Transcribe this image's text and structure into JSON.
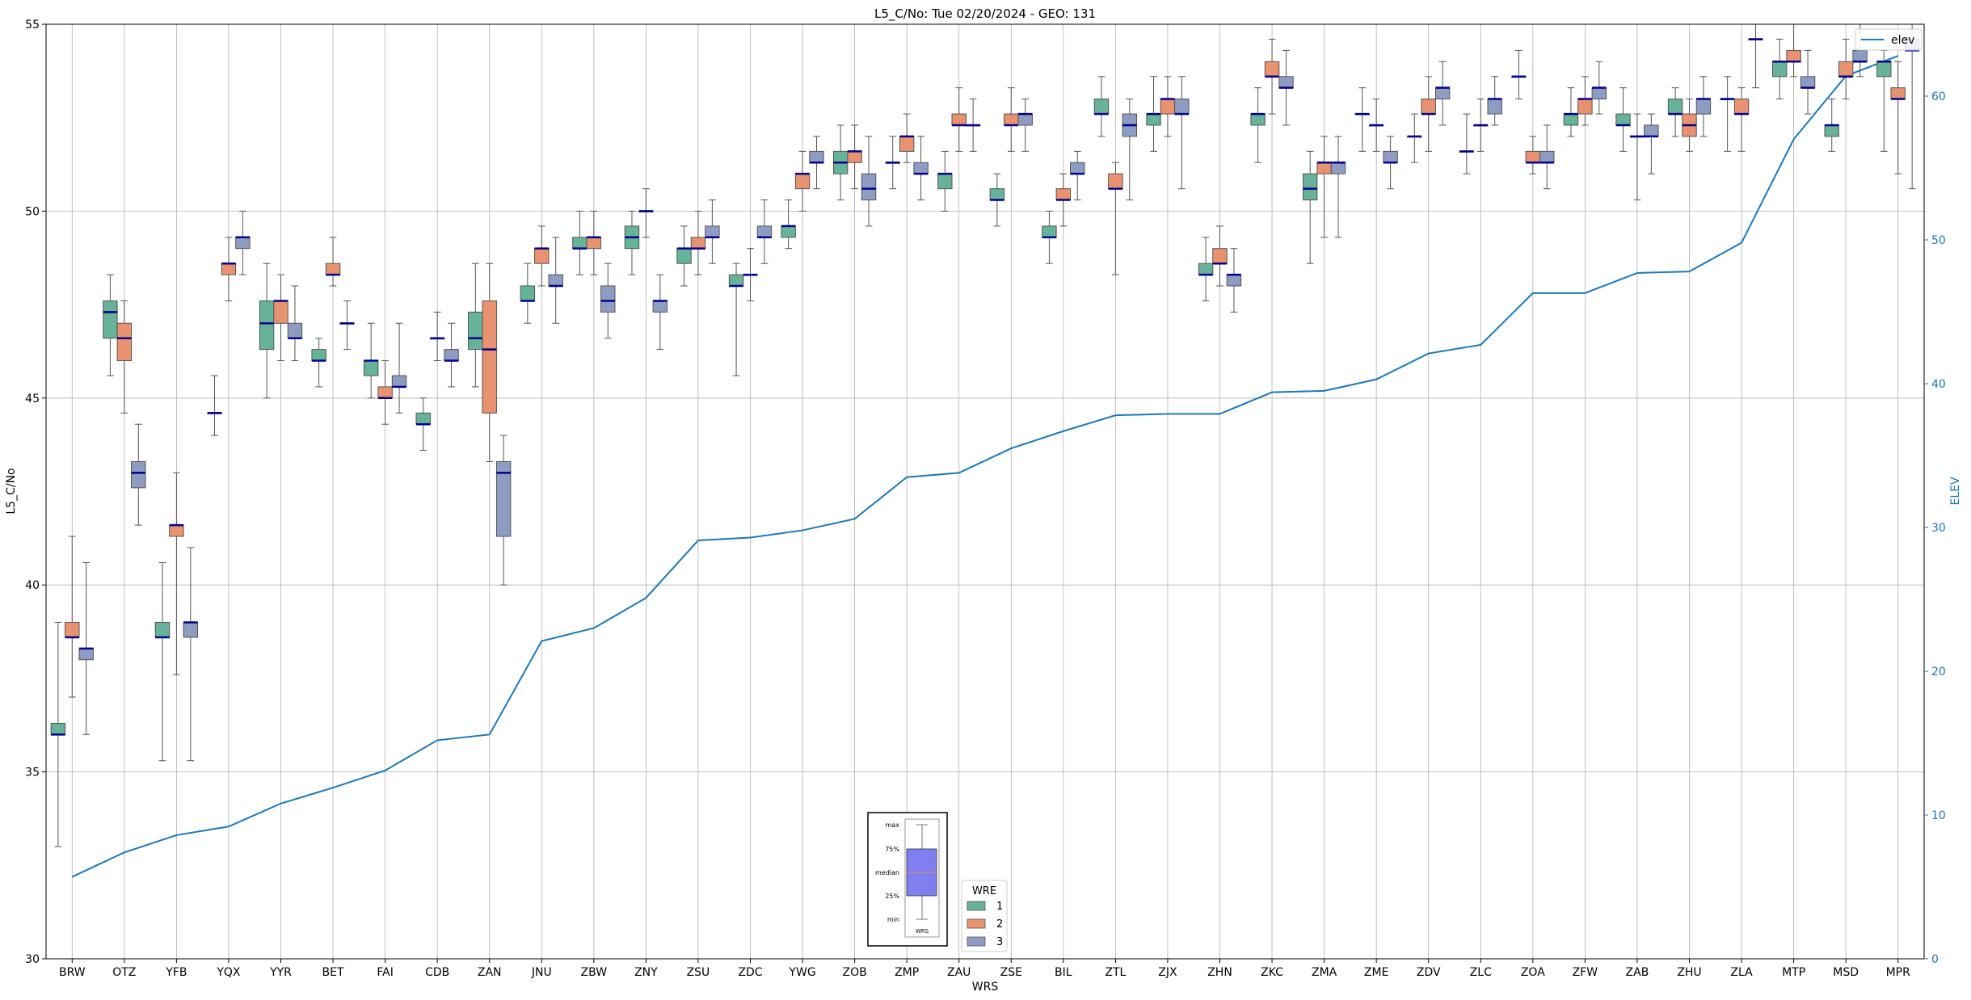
{
  "chart_data": {
    "type": "box",
    "title": "L5_C/No: Tue 02/20/2024 - GEO: 131",
    "xlabel": "WRS",
    "ylabel": "L5_C/No",
    "y2label": "ELEV",
    "ylim": [
      30,
      55
    ],
    "y2lim": [
      0,
      65
    ],
    "yticks": [
      30,
      35,
      40,
      45,
      50,
      55
    ],
    "y2ticks": [
      0,
      10,
      20,
      30,
      40,
      50,
      60
    ],
    "grid": true,
    "categories": [
      "BRW",
      "OTZ",
      "YFB",
      "YQX",
      "YYR",
      "BET",
      "FAI",
      "CDB",
      "ZAN",
      "JNU",
      "ZBW",
      "ZNY",
      "ZSU",
      "ZDC",
      "YWG",
      "ZOB",
      "ZMP",
      "ZAU",
      "ZSE",
      "BIL",
      "ZTL",
      "ZJX",
      "ZHN",
      "ZKC",
      "ZMA",
      "ZME",
      "ZDV",
      "ZLC",
      "ZOA",
      "ZFW",
      "ZAB",
      "ZHU",
      "ZLA",
      "MTP",
      "MSD",
      "MPR"
    ],
    "elev_series": {
      "name": "elev",
      "values": [
        5.7,
        7.4,
        8.6,
        9.2,
        10.8,
        11.9,
        13.1,
        15.2,
        15.6,
        22.1,
        23.0,
        25.1,
        29.1,
        29.3,
        29.8,
        30.6,
        33.5,
        33.8,
        35.5,
        36.7,
        37.8,
        37.9,
        37.9,
        39.4,
        39.5,
        40.3,
        42.1,
        42.7,
        46.3,
        46.3,
        47.7,
        47.8,
        49.8,
        57.0,
        61.4,
        62.8
      ]
    },
    "wre_legend": {
      "title": "WRE",
      "items": [
        {
          "name": "1",
          "color": "#66b39a"
        },
        {
          "name": "2",
          "color": "#e8926f"
        },
        {
          "name": "3",
          "color": "#8f9cc2"
        }
      ]
    },
    "boxes": [
      {
        "cat": "BRW",
        "wre": 1,
        "min": 33.0,
        "q1": 36.0,
        "med": 36.0,
        "q3": 36.3,
        "max": 39.0
      },
      {
        "cat": "BRW",
        "wre": 2,
        "min": 37.0,
        "q1": 38.6,
        "med": 38.6,
        "q3": 39.0,
        "max": 41.3
      },
      {
        "cat": "BRW",
        "wre": 3,
        "min": 36.0,
        "q1": 38.0,
        "med": 38.3,
        "q3": 38.3,
        "max": 40.6
      },
      {
        "cat": "OTZ",
        "wre": 1,
        "min": 45.6,
        "q1": 46.6,
        "med": 47.3,
        "q3": 47.6,
        "max": 48.3
      },
      {
        "cat": "OTZ",
        "wre": 2,
        "min": 44.6,
        "q1": 46.0,
        "med": 46.6,
        "q3": 47.0,
        "max": 47.6
      },
      {
        "cat": "OTZ",
        "wre": 3,
        "min": 41.6,
        "q1": 42.6,
        "med": 43.0,
        "q3": 43.3,
        "max": 44.3
      },
      {
        "cat": "YFB",
        "wre": 1,
        "min": 35.3,
        "q1": 38.6,
        "med": 38.6,
        "q3": 39.0,
        "max": 40.6
      },
      {
        "cat": "YFB",
        "wre": 2,
        "min": 37.6,
        "q1": 41.3,
        "med": 41.6,
        "q3": 41.6,
        "max": 43.0
      },
      {
        "cat": "YFB",
        "wre": 3,
        "min": 35.3,
        "q1": 38.6,
        "med": 39.0,
        "q3": 39.0,
        "max": 41.0
      },
      {
        "cat": "YQX",
        "wre": 1,
        "min": 44.0,
        "q1": 44.6,
        "med": 44.6,
        "q3": 44.6,
        "max": 45.6
      },
      {
        "cat": "YQX",
        "wre": 2,
        "min": 47.6,
        "q1": 48.3,
        "med": 48.6,
        "q3": 48.6,
        "max": 49.3
      },
      {
        "cat": "YQX",
        "wre": 3,
        "min": 48.3,
        "q1": 49.0,
        "med": 49.3,
        "q3": 49.3,
        "max": 50.0
      },
      {
        "cat": "YYR",
        "wre": 1,
        "min": 45.0,
        "q1": 46.3,
        "med": 47.0,
        "q3": 47.6,
        "max": 48.6
      },
      {
        "cat": "YYR",
        "wre": 2,
        "min": 46.0,
        "q1": 47.0,
        "med": 47.6,
        "q3": 47.6,
        "max": 48.3
      },
      {
        "cat": "YYR",
        "wre": 3,
        "min": 46.0,
        "q1": 46.6,
        "med": 46.6,
        "q3": 47.0,
        "max": 48.0
      },
      {
        "cat": "BET",
        "wre": 1,
        "min": 45.3,
        "q1": 46.0,
        "med": 46.0,
        "q3": 46.3,
        "max": 46.6
      },
      {
        "cat": "BET",
        "wre": 2,
        "min": 48.0,
        "q1": 48.3,
        "med": 48.3,
        "q3": 48.6,
        "max": 49.3
      },
      {
        "cat": "BET",
        "wre": 3,
        "min": 46.3,
        "q1": 47.0,
        "med": 47.0,
        "q3": 47.0,
        "max": 47.6
      },
      {
        "cat": "FAI",
        "wre": 1,
        "min": 45.0,
        "q1": 45.6,
        "med": 46.0,
        "q3": 46.0,
        "max": 47.0
      },
      {
        "cat": "FAI",
        "wre": 2,
        "min": 44.3,
        "q1": 45.0,
        "med": 45.0,
        "q3": 45.3,
        "max": 46.0
      },
      {
        "cat": "FAI",
        "wre": 3,
        "min": 44.6,
        "q1": 45.3,
        "med": 45.3,
        "q3": 45.6,
        "max": 47.0
      },
      {
        "cat": "CDB",
        "wre": 1,
        "min": 43.6,
        "q1": 44.3,
        "med": 44.3,
        "q3": 44.6,
        "max": 45.0
      },
      {
        "cat": "CDB",
        "wre": 2,
        "min": 46.0,
        "q1": 46.6,
        "med": 46.6,
        "q3": 46.6,
        "max": 47.3
      },
      {
        "cat": "CDB",
        "wre": 3,
        "min": 45.3,
        "q1": 46.0,
        "med": 46.0,
        "q3": 46.3,
        "max": 47.0
      },
      {
        "cat": "ZAN",
        "wre": 1,
        "min": 45.3,
        "q1": 46.3,
        "med": 46.6,
        "q3": 47.3,
        "max": 48.6
      },
      {
        "cat": "ZAN",
        "wre": 2,
        "min": 43.3,
        "q1": 44.6,
        "med": 46.3,
        "q3": 47.6,
        "max": 48.6
      },
      {
        "cat": "ZAN",
        "wre": 3,
        "min": 40.0,
        "q1": 41.3,
        "med": 43.0,
        "q3": 43.3,
        "max": 44.0
      },
      {
        "cat": "JNU",
        "wre": 1,
        "min": 47.0,
        "q1": 47.6,
        "med": 47.6,
        "q3": 48.0,
        "max": 48.6
      },
      {
        "cat": "JNU",
        "wre": 2,
        "min": 48.0,
        "q1": 48.6,
        "med": 49.0,
        "q3": 49.0,
        "max": 49.6
      },
      {
        "cat": "JNU",
        "wre": 3,
        "min": 47.0,
        "q1": 48.0,
        "med": 48.0,
        "q3": 48.3,
        "max": 49.3
      },
      {
        "cat": "ZBW",
        "wre": 1,
        "min": 48.3,
        "q1": 49.0,
        "med": 49.0,
        "q3": 49.3,
        "max": 50.0
      },
      {
        "cat": "ZBW",
        "wre": 2,
        "min": 48.3,
        "q1": 49.0,
        "med": 49.3,
        "q3": 49.3,
        "max": 50.0
      },
      {
        "cat": "ZBW",
        "wre": 3,
        "min": 46.6,
        "q1": 47.3,
        "med": 47.6,
        "q3": 48.0,
        "max": 48.6
      },
      {
        "cat": "ZNY",
        "wre": 1,
        "min": 48.3,
        "q1": 49.0,
        "med": 49.3,
        "q3": 49.6,
        "max": 50.0
      },
      {
        "cat": "ZNY",
        "wre": 2,
        "min": 49.3,
        "q1": 50.0,
        "med": 50.0,
        "q3": 50.0,
        "max": 50.6
      },
      {
        "cat": "ZNY",
        "wre": 3,
        "min": 46.3,
        "q1": 47.3,
        "med": 47.6,
        "q3": 47.6,
        "max": 48.3
      },
      {
        "cat": "ZSU",
        "wre": 1,
        "min": 48.0,
        "q1": 48.6,
        "med": 49.0,
        "q3": 49.0,
        "max": 49.6
      },
      {
        "cat": "ZSU",
        "wre": 2,
        "min": 48.3,
        "q1": 49.0,
        "med": 49.0,
        "q3": 49.3,
        "max": 50.0
      },
      {
        "cat": "ZSU",
        "wre": 3,
        "min": 48.6,
        "q1": 49.3,
        "med": 49.3,
        "q3": 49.6,
        "max": 50.3
      },
      {
        "cat": "ZDC",
        "wre": 1,
        "min": 45.6,
        "q1": 48.0,
        "med": 48.0,
        "q3": 48.3,
        "max": 48.6
      },
      {
        "cat": "ZDC",
        "wre": 2,
        "min": 47.6,
        "q1": 48.3,
        "med": 48.3,
        "q3": 48.3,
        "max": 49.0
      },
      {
        "cat": "ZDC",
        "wre": 3,
        "min": 48.6,
        "q1": 49.3,
        "med": 49.3,
        "q3": 49.6,
        "max": 50.3
      },
      {
        "cat": "YWG",
        "wre": 1,
        "min": 49.0,
        "q1": 49.3,
        "med": 49.6,
        "q3": 49.6,
        "max": 50.3
      },
      {
        "cat": "YWG",
        "wre": 2,
        "min": 50.0,
        "q1": 50.6,
        "med": 51.0,
        "q3": 51.0,
        "max": 51.6
      },
      {
        "cat": "YWG",
        "wre": 3,
        "min": 50.6,
        "q1": 51.3,
        "med": 51.3,
        "q3": 51.6,
        "max": 52.0
      },
      {
        "cat": "ZOB",
        "wre": 1,
        "min": 50.3,
        "q1": 51.0,
        "med": 51.3,
        "q3": 51.6,
        "max": 52.3
      },
      {
        "cat": "ZOB",
        "wre": 2,
        "min": 50.6,
        "q1": 51.3,
        "med": 51.6,
        "q3": 51.6,
        "max": 52.3
      },
      {
        "cat": "ZOB",
        "wre": 3,
        "min": 49.6,
        "q1": 50.3,
        "med": 50.6,
        "q3": 51.0,
        "max": 52.0
      },
      {
        "cat": "ZMP",
        "wre": 1,
        "min": 50.6,
        "q1": 51.3,
        "med": 51.3,
        "q3": 51.3,
        "max": 52.0
      },
      {
        "cat": "ZMP",
        "wre": 2,
        "min": 51.3,
        "q1": 51.6,
        "med": 52.0,
        "q3": 52.0,
        "max": 52.6
      },
      {
        "cat": "ZMP",
        "wre": 3,
        "min": 50.3,
        "q1": 51.0,
        "med": 51.0,
        "q3": 51.3,
        "max": 52.0
      },
      {
        "cat": "ZAU",
        "wre": 1,
        "min": 50.0,
        "q1": 50.6,
        "med": 51.0,
        "q3": 51.0,
        "max": 51.6
      },
      {
        "cat": "ZAU",
        "wre": 2,
        "min": 51.6,
        "q1": 52.3,
        "med": 52.3,
        "q3": 52.6,
        "max": 53.3
      },
      {
        "cat": "ZAU",
        "wre": 3,
        "min": 51.6,
        "q1": 52.3,
        "med": 52.3,
        "q3": 52.3,
        "max": 53.0
      },
      {
        "cat": "ZSE",
        "wre": 1,
        "min": 49.6,
        "q1": 50.3,
        "med": 50.3,
        "q3": 50.6,
        "max": 51.0
      },
      {
        "cat": "ZSE",
        "wre": 2,
        "min": 51.6,
        "q1": 52.3,
        "med": 52.3,
        "q3": 52.6,
        "max": 53.3
      },
      {
        "cat": "ZSE",
        "wre": 3,
        "min": 51.6,
        "q1": 52.3,
        "med": 52.6,
        "q3": 52.6,
        "max": 53.0
      },
      {
        "cat": "BIL",
        "wre": 1,
        "min": 48.6,
        "q1": 49.3,
        "med": 49.3,
        "q3": 49.6,
        "max": 50.0
      },
      {
        "cat": "BIL",
        "wre": 2,
        "min": 49.6,
        "q1": 50.3,
        "med": 50.3,
        "q3": 50.6,
        "max": 51.0
      },
      {
        "cat": "BIL",
        "wre": 3,
        "min": 50.3,
        "q1": 51.0,
        "med": 51.0,
        "q3": 51.3,
        "max": 51.6
      },
      {
        "cat": "ZTL",
        "wre": 1,
        "min": 52.0,
        "q1": 52.6,
        "med": 52.6,
        "q3": 53.0,
        "max": 53.6
      },
      {
        "cat": "ZTL",
        "wre": 2,
        "min": 48.3,
        "q1": 50.6,
        "med": 50.6,
        "q3": 51.0,
        "max": 51.3
      },
      {
        "cat": "ZTL",
        "wre": 3,
        "min": 50.3,
        "q1": 52.0,
        "med": 52.3,
        "q3": 52.6,
        "max": 53.0
      },
      {
        "cat": "ZJX",
        "wre": 1,
        "min": 51.6,
        "q1": 52.3,
        "med": 52.6,
        "q3": 52.6,
        "max": 53.6
      },
      {
        "cat": "ZJX",
        "wre": 2,
        "min": 52.0,
        "q1": 52.6,
        "med": 53.0,
        "q3": 53.0,
        "max": 53.6
      },
      {
        "cat": "ZJX",
        "wre": 3,
        "min": 50.6,
        "q1": 52.6,
        "med": 52.6,
        "q3": 53.0,
        "max": 53.6
      },
      {
        "cat": "ZHN",
        "wre": 1,
        "min": 47.6,
        "q1": 48.3,
        "med": 48.3,
        "q3": 48.6,
        "max": 49.3
      },
      {
        "cat": "ZHN",
        "wre": 2,
        "min": 48.0,
        "q1": 48.6,
        "med": 48.6,
        "q3": 49.0,
        "max": 49.6
      },
      {
        "cat": "ZHN",
        "wre": 3,
        "min": 47.3,
        "q1": 48.0,
        "med": 48.3,
        "q3": 48.3,
        "max": 49.0
      },
      {
        "cat": "ZKC",
        "wre": 1,
        "min": 51.3,
        "q1": 52.3,
        "med": 52.6,
        "q3": 52.6,
        "max": 53.3
      },
      {
        "cat": "ZKC",
        "wre": 2,
        "min": 52.6,
        "q1": 53.6,
        "med": 53.6,
        "q3": 54.0,
        "max": 54.6
      },
      {
        "cat": "ZKC",
        "wre": 3,
        "min": 52.3,
        "q1": 53.3,
        "med": 53.3,
        "q3": 53.6,
        "max": 54.3
      },
      {
        "cat": "ZMA",
        "wre": 1,
        "min": 48.6,
        "q1": 50.3,
        "med": 50.6,
        "q3": 51.0,
        "max": 51.6
      },
      {
        "cat": "ZMA",
        "wre": 2,
        "min": 49.3,
        "q1": 51.0,
        "med": 51.3,
        "q3": 51.3,
        "max": 52.0
      },
      {
        "cat": "ZMA",
        "wre": 3,
        "min": 49.3,
        "q1": 51.0,
        "med": 51.3,
        "q3": 51.3,
        "max": 52.0
      },
      {
        "cat": "ZME",
        "wre": 1,
        "min": 51.6,
        "q1": 52.6,
        "med": 52.6,
        "q3": 52.6,
        "max": 53.3
      },
      {
        "cat": "ZME",
        "wre": 2,
        "min": 51.6,
        "q1": 52.3,
        "med": 52.3,
        "q3": 52.3,
        "max": 53.0
      },
      {
        "cat": "ZME",
        "wre": 3,
        "min": 50.6,
        "q1": 51.3,
        "med": 51.3,
        "q3": 51.6,
        "max": 52.0
      },
      {
        "cat": "ZDV",
        "wre": 1,
        "min": 51.3,
        "q1": 52.0,
        "med": 52.0,
        "q3": 52.0,
        "max": 52.6
      },
      {
        "cat": "ZDV",
        "wre": 2,
        "min": 51.6,
        "q1": 52.6,
        "med": 52.6,
        "q3": 53.0,
        "max": 53.6
      },
      {
        "cat": "ZDV",
        "wre": 3,
        "min": 52.3,
        "q1": 53.0,
        "med": 53.3,
        "q3": 53.3,
        "max": 54.0
      },
      {
        "cat": "ZLC",
        "wre": 1,
        "min": 51.0,
        "q1": 51.6,
        "med": 51.6,
        "q3": 51.6,
        "max": 52.6
      },
      {
        "cat": "ZLC",
        "wre": 2,
        "min": 51.6,
        "q1": 52.3,
        "med": 52.3,
        "q3": 52.3,
        "max": 53.0
      },
      {
        "cat": "ZLC",
        "wre": 3,
        "min": 52.3,
        "q1": 52.6,
        "med": 53.0,
        "q3": 53.0,
        "max": 53.6
      },
      {
        "cat": "ZOA",
        "wre": 1,
        "min": 53.0,
        "q1": 53.6,
        "med": 53.6,
        "q3": 53.6,
        "max": 54.3
      },
      {
        "cat": "ZOA",
        "wre": 2,
        "min": 51.0,
        "q1": 51.3,
        "med": 51.3,
        "q3": 51.6,
        "max": 52.0
      },
      {
        "cat": "ZOA",
        "wre": 3,
        "min": 50.6,
        "q1": 51.3,
        "med": 51.3,
        "q3": 51.6,
        "max": 52.3
      },
      {
        "cat": "ZFW",
        "wre": 1,
        "min": 52.0,
        "q1": 52.3,
        "med": 52.6,
        "q3": 52.6,
        "max": 53.3
      },
      {
        "cat": "ZFW",
        "wre": 2,
        "min": 52.3,
        "q1": 52.6,
        "med": 53.0,
        "q3": 53.0,
        "max": 53.6
      },
      {
        "cat": "ZFW",
        "wre": 3,
        "min": 52.6,
        "q1": 53.0,
        "med": 53.3,
        "q3": 53.3,
        "max": 54.0
      },
      {
        "cat": "ZAB",
        "wre": 1,
        "min": 51.6,
        "q1": 52.3,
        "med": 52.3,
        "q3": 52.6,
        "max": 53.3
      },
      {
        "cat": "ZAB",
        "wre": 2,
        "min": 50.3,
        "q1": 52.0,
        "med": 52.0,
        "q3": 52.0,
        "max": 52.6
      },
      {
        "cat": "ZAB",
        "wre": 3,
        "min": 51.0,
        "q1": 52.0,
        "med": 52.0,
        "q3": 52.3,
        "max": 52.6
      },
      {
        "cat": "ZHU",
        "wre": 1,
        "min": 52.0,
        "q1": 52.6,
        "med": 52.6,
        "q3": 53.0,
        "max": 53.3
      },
      {
        "cat": "ZHU",
        "wre": 2,
        "min": 51.6,
        "q1": 52.0,
        "med": 52.3,
        "q3": 52.6,
        "max": 53.0
      },
      {
        "cat": "ZHU",
        "wre": 3,
        "min": 52.0,
        "q1": 52.6,
        "med": 53.0,
        "q3": 53.0,
        "max": 53.6
      },
      {
        "cat": "ZLA",
        "wre": 1,
        "min": 51.6,
        "q1": 53.0,
        "med": 53.0,
        "q3": 53.0,
        "max": 53.6
      },
      {
        "cat": "ZLA",
        "wre": 2,
        "min": 51.6,
        "q1": 52.6,
        "med": 52.6,
        "q3": 53.0,
        "max": 53.3
      },
      {
        "cat": "ZLA",
        "wre": 3,
        "min": 53.3,
        "q1": 54.6,
        "med": 54.6,
        "q3": 54.6,
        "max": 55.0
      },
      {
        "cat": "MTP",
        "wre": 1,
        "min": 53.0,
        "q1": 53.6,
        "med": 54.0,
        "q3": 54.0,
        "max": 54.6
      },
      {
        "cat": "MTP",
        "wre": 2,
        "min": 53.6,
        "q1": 54.0,
        "med": 54.0,
        "q3": 54.3,
        "max": 55.0
      },
      {
        "cat": "MTP",
        "wre": 3,
        "min": 52.6,
        "q1": 53.3,
        "med": 53.3,
        "q3": 53.6,
        "max": 54.3
      },
      {
        "cat": "MSD",
        "wre": 1,
        "min": 51.6,
        "q1": 52.0,
        "med": 52.3,
        "q3": 52.3,
        "max": 53.0
      },
      {
        "cat": "MSD",
        "wre": 2,
        "min": 53.0,
        "q1": 53.6,
        "med": 53.6,
        "q3": 54.0,
        "max": 54.6
      },
      {
        "cat": "MSD",
        "wre": 3,
        "min": 53.6,
        "q1": 54.0,
        "med": 54.0,
        "q3": 54.3,
        "max": 55.0
      },
      {
        "cat": "MPR",
        "wre": 1,
        "min": 51.6,
        "q1": 53.6,
        "med": 54.0,
        "q3": 54.0,
        "max": 54.3
      },
      {
        "cat": "MPR",
        "wre": 2,
        "min": 51.0,
        "q1": 53.0,
        "med": 53.0,
        "q3": 53.3,
        "max": 54.0
      },
      {
        "cat": "MPR",
        "wre": 3,
        "min": 50.6,
        "q1": 54.3,
        "med": 54.3,
        "q3": 54.6,
        "max": 55.0
      }
    ],
    "explainer": {
      "labels": [
        "max",
        "75%",
        "median",
        "25%",
        "min"
      ],
      "xlabel": "WRS"
    }
  }
}
